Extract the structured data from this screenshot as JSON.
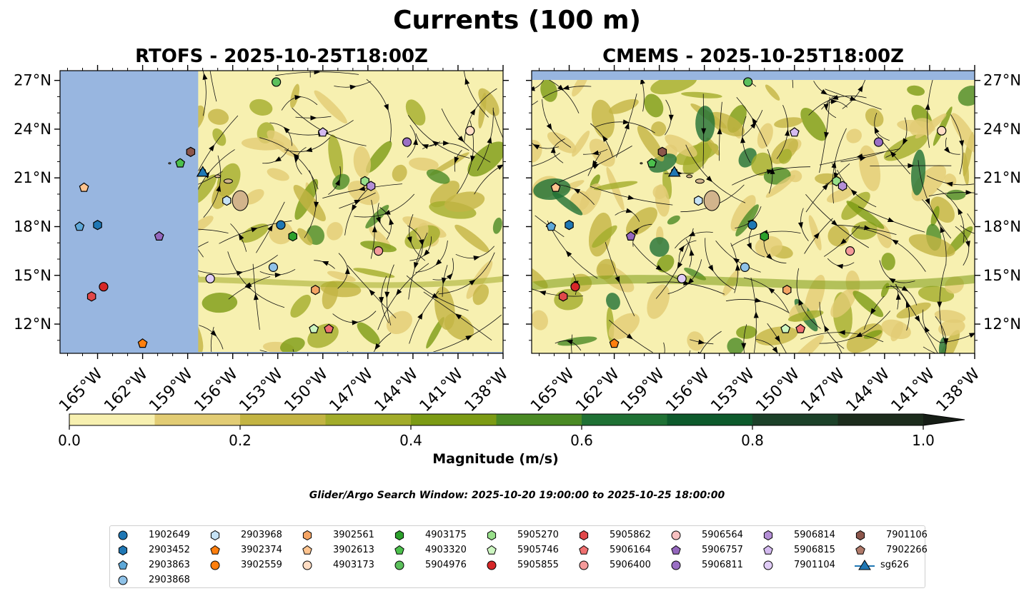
{
  "title": "Currents (100 m)",
  "panels": [
    {
      "title": "RTOFS - 2025-10-25T18:00Z"
    },
    {
      "title": "CMEMS - 2025-10-25T18:00Z"
    }
  ],
  "colorbar": {
    "label": "Magnitude (m/s)",
    "ticks": [
      "0.0",
      "0.2",
      "0.4",
      "0.6",
      "0.8",
      "1.0"
    ]
  },
  "window_text": "Glider/Argo Search Window: 2025-10-20 19:00:00 to 2025-10-25 18:00:00",
  "chart_data": {
    "type": "map",
    "variable": "Current magnitude at 100 m",
    "units": "m/s",
    "colorbar_range": [
      0.0,
      1.0
    ],
    "colorbar_extend": "max",
    "colorbar_bins": [
      0.0,
      0.1,
      0.2,
      0.3,
      0.4,
      0.5,
      0.6,
      0.7,
      0.8,
      0.9,
      1.0
    ],
    "colorbar_colors": [
      "#f7f0b0",
      "#e2cc74",
      "#c3b443",
      "#a2ac2a",
      "#7c9b14",
      "#4a8a24",
      "#1f7134",
      "#0d5a2c",
      "#1c4129",
      "#1c2c1c"
    ],
    "lon_range": [
      -167.5,
      -138
    ],
    "lat_range": [
      10.2,
      27.6
    ],
    "lon_ticks": [
      "165°W",
      "162°W",
      "159°W",
      "156°W",
      "153°W",
      "150°W",
      "147°W",
      "144°W",
      "141°W",
      "138°W"
    ],
    "lat_ticks": [
      "12°N",
      "15°N",
      "18°N",
      "21°N",
      "24°N",
      "27°N"
    ],
    "rtofs_domain_west_edge_lon": -158.3,
    "platforms": [
      {
        "id": "1902649",
        "color": "#1f77b4",
        "shape": "circle",
        "lon": -152.8,
        "lat": 18.1
      },
      {
        "id": "2903452",
        "color": "#1f77b4",
        "shape": "hexagon",
        "lon": -165.0,
        "lat": 18.1
      },
      {
        "id": "2903863",
        "color": "#5ea8d8",
        "shape": "pentagon",
        "lon": -166.2,
        "lat": 18.0
      },
      {
        "id": "2903868",
        "color": "#8fc2e8",
        "shape": "circle",
        "lon": -153.3,
        "lat": 15.5
      },
      {
        "id": "2903968",
        "color": "#c6e2f5",
        "shape": "hexagon",
        "lon": -156.4,
        "lat": 19.6
      },
      {
        "id": "3902374",
        "color": "#ff7f0e",
        "shape": "pentagon",
        "lon": -162.0,
        "lat": 10.8
      },
      {
        "id": "3902559",
        "color": "#ff7f0e",
        "shape": "circle",
        "lon": null,
        "lat": null
      },
      {
        "id": "3902561",
        "color": "#f4a464",
        "shape": "hexagon",
        "lon": -150.5,
        "lat": 14.1
      },
      {
        "id": "3902613",
        "color": "#ffc48f",
        "shape": "pentagon",
        "lon": -165.9,
        "lat": 20.4
      },
      {
        "id": "4903173",
        "color": "#ffddc4",
        "shape": "circle",
        "lon": -140.2,
        "lat": 23.9
      },
      {
        "id": "4903175",
        "color": "#2ca02c",
        "shape": "hexagon",
        "lon": -152.0,
        "lat": 17.4
      },
      {
        "id": "4903320",
        "color": "#4cc04c",
        "shape": "pentagon",
        "lon": -159.5,
        "lat": 21.9
      },
      {
        "id": "5904976",
        "color": "#5cc05c",
        "shape": "circle",
        "lon": -153.1,
        "lat": 26.9
      },
      {
        "id": "5905270",
        "color": "#98df8a",
        "shape": "hexagon",
        "lon": -147.2,
        "lat": 20.8
      },
      {
        "id": "5905746",
        "color": "#cdf6c1",
        "shape": "pentagon",
        "lon": -150.6,
        "lat": 11.7
      },
      {
        "id": "5905855",
        "color": "#d62728",
        "shape": "circle",
        "lon": -164.6,
        "lat": 14.3
      },
      {
        "id": "5905862",
        "color": "#e0484a",
        "shape": "hexagon",
        "lon": -165.4,
        "lat": 13.7
      },
      {
        "id": "5906164",
        "color": "#f07070",
        "shape": "pentagon",
        "lon": -149.6,
        "lat": 11.7
      },
      {
        "id": "5906400",
        "color": "#f49a9a",
        "shape": "circle",
        "lon": -146.3,
        "lat": 16.5
      },
      {
        "id": "5906564",
        "color": "#f7c0c0",
        "shape": "circle",
        "lon": null,
        "lat": null
      },
      {
        "id": "5906757",
        "color": "#9467bd",
        "shape": "pentagon",
        "lon": -160.9,
        "lat": 17.4
      },
      {
        "id": "5906811",
        "color": "#9a6fc4",
        "shape": "circle",
        "lon": -144.4,
        "lat": 23.2
      },
      {
        "id": "5906814",
        "color": "#b48fd6",
        "shape": "hexagon",
        "lon": -146.8,
        "lat": 20.5
      },
      {
        "id": "5906815",
        "color": "#d4baf0",
        "shape": "pentagon",
        "lon": -150.0,
        "lat": 23.8
      },
      {
        "id": "7901104",
        "color": "#e0ccf6",
        "shape": "circle",
        "lon": -157.5,
        "lat": 14.8
      },
      {
        "id": "7901106",
        "color": "#8c564b",
        "shape": "hexagon",
        "lon": -158.8,
        "lat": 22.6
      },
      {
        "id": "7902266",
        "color": "#b07a6a",
        "shape": "pentagon",
        "lon": null,
        "lat": null
      },
      {
        "id": "sg626",
        "color": "#1f77b4",
        "shape": "triangle",
        "lon": -158.0,
        "lat": 21.3
      }
    ]
  }
}
